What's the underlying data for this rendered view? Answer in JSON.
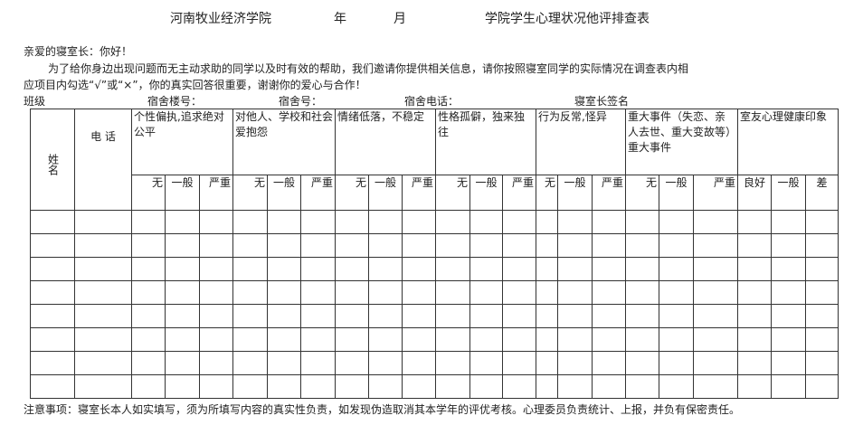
{
  "title": {
    "school": "河南牧业经济学院",
    "year": "年",
    "month": "月",
    "form_name": "学院学生心理状况他评排查表"
  },
  "greeting": "亲爱的寝室长：你好！",
  "intro_line1": "为了给你身边出现问题而无主动求助的同学以及时有效的帮助，我们邀请你提供相关信息，请你按照寝室同学的实际情况在调查表内相",
  "intro_line2": "应项目内勾选“√”或“×”，你的真实回答很重要，谢谢你的爱心与合作！",
  "fields": {
    "class": "班级",
    "building": "宿舍楼号：",
    "room": "宿舍号：",
    "phone": "宿舍电话：",
    "signature": "寝室长签名"
  },
  "table": {
    "name_header": "姓名",
    "phone_header": "电 话",
    "groups": [
      {
        "label": "个性偏执,追求绝对公平",
        "levels": [
          "无",
          "一般",
          "严重"
        ]
      },
      {
        "label": "对他人、学校和社会爱抱怨",
        "levels": [
          "无",
          "一般",
          "严重"
        ]
      },
      {
        "label": "情绪低落，不稳定",
        "levels": [
          "无",
          "一般",
          "严重"
        ]
      },
      {
        "label": "性格孤僻，独来独往",
        "levels": [
          "无",
          "一般",
          "严重"
        ]
      },
      {
        "label": "行为反常,怪异",
        "levels": [
          "无",
          "一般",
          "严重"
        ]
      },
      {
        "label": "重大事件（失恋、亲人去世、重大变故等）重大事件",
        "levels": [
          "无",
          "一般",
          "严重"
        ]
      },
      {
        "label": "室友心理健康印象",
        "levels": [
          "良好",
          "一般",
          "差"
        ]
      }
    ],
    "row_count": 8
  },
  "note": "注意事项：寝室长本人如实填写，须为所填写内容的真实性负责，如发现伪造取消其本学年的评优考核。心理委员负责统计、上报，并负有保密责任。"
}
